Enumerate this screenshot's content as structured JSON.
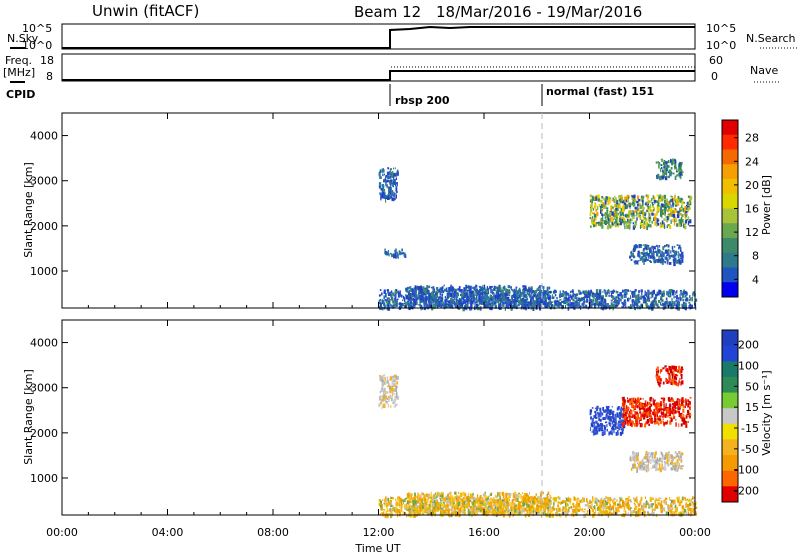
{
  "header": {
    "station": "Unwin (fitACF)",
    "beam": "Beam 12",
    "date_range": "18/Mar/2016 - 19/Mar/2016"
  },
  "params": {
    "nsky_label": "N.Sky",
    "nsky_ticks": [
      "10^5",
      "10^0"
    ],
    "nsearch_label": "N.Search",
    "nsearch_ticks": [
      "10^5",
      "10^0"
    ],
    "freq_label_1": "Freq.",
    "freq_label_2": "[MHz]",
    "freq_ticks": [
      "18",
      "8"
    ],
    "nave_label": "Nave",
    "nave_ticks": [
      "60",
      "0"
    ],
    "cpid_label": "CPID",
    "cpid_segments": [
      {
        "label": "rbsp 200",
        "start_hour": 12.0
      },
      {
        "label": "normal (fast) 151",
        "start_hour": 18.0
      }
    ]
  },
  "chart_data": [
    {
      "type": "heatmap",
      "panel": "power",
      "ylabel": "Slant Range [km]",
      "ylim": [
        180,
        4500
      ],
      "yticks": [
        "1000",
        "2000",
        "3000",
        "4000"
      ],
      "xlim": [
        0,
        24
      ],
      "colorbar": {
        "label": "Power [dB]",
        "ticks": [
          "4",
          "8",
          "12",
          "16",
          "20",
          "24",
          "28"
        ]
      },
      "regions": [
        {
          "t0": 12.0,
          "t1": 24.0,
          "r0": 200,
          "r1": 600,
          "level": "weak"
        },
        {
          "t0": 13.0,
          "t1": 18.5,
          "r0": 250,
          "r1": 700,
          "level": "weak"
        },
        {
          "t0": 12.0,
          "t1": 12.7,
          "r0": 2600,
          "r1": 3300,
          "level": "weak"
        },
        {
          "t0": 12.2,
          "t1": 13.0,
          "r0": 1350,
          "r1": 1500,
          "level": "weak"
        },
        {
          "t0": 20.0,
          "t1": 23.8,
          "r0": 2000,
          "r1": 2700,
          "level": "strong"
        },
        {
          "t0": 21.5,
          "t1": 23.5,
          "r0": 1200,
          "r1": 1600,
          "level": "weak"
        },
        {
          "t0": 22.5,
          "t1": 23.5,
          "r0": 3100,
          "r1": 3500,
          "level": "medium"
        }
      ]
    },
    {
      "type": "heatmap",
      "panel": "velocity",
      "ylabel": "Slant Range [km]",
      "xlabel": "Time UT",
      "ylim": [
        180,
        4500
      ],
      "yticks": [
        "1000",
        "2000",
        "3000",
        "4000"
      ],
      "xlim": [
        0,
        24
      ],
      "xticks": [
        "00:00",
        "04:00",
        "08:00",
        "12:00",
        "16:00",
        "20:00",
        "00:00"
      ],
      "colorbar": {
        "label": "Velocity [m s⁻¹]",
        "ticks": [
          "200",
          "100",
          "50",
          "15",
          "-15",
          "-50",
          "-100",
          "-200"
        ]
      },
      "regions": [
        {
          "t0": 12.0,
          "t1": 24.0,
          "r0": 200,
          "r1": 600,
          "level": "toward"
        },
        {
          "t0": 13.0,
          "t1": 18.5,
          "r0": 250,
          "r1": 700,
          "level": "toward"
        },
        {
          "t0": 12.0,
          "t1": 12.7,
          "r0": 2600,
          "r1": 3300,
          "level": "near-zero"
        },
        {
          "t0": 20.0,
          "t1": 21.3,
          "r0": 2000,
          "r1": 2600,
          "level": "away"
        },
        {
          "t0": 21.2,
          "t1": 23.8,
          "r0": 2200,
          "r1": 2800,
          "level": "toward-strong"
        },
        {
          "t0": 21.5,
          "t1": 23.5,
          "r0": 1200,
          "r1": 1600,
          "level": "near-zero"
        },
        {
          "t0": 22.5,
          "t1": 23.5,
          "r0": 3100,
          "r1": 3500,
          "level": "toward-strong"
        }
      ]
    }
  ]
}
